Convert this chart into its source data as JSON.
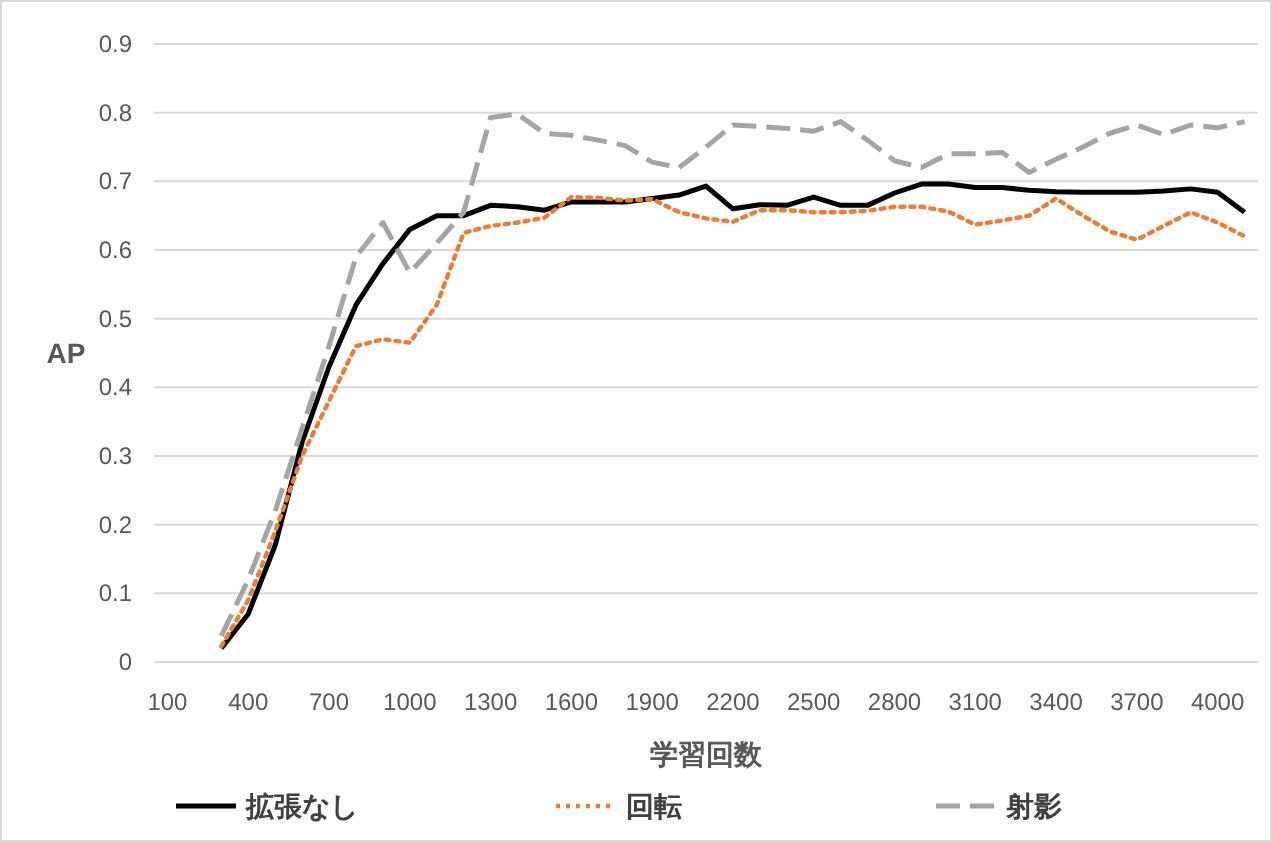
{
  "chart_data": {
    "type": "line",
    "xlabel": "学習回数",
    "ylabel": "AP",
    "categories": [
      "100",
      null,
      null,
      "400",
      null,
      null,
      "700",
      null,
      null,
      "1000",
      null,
      null,
      "1300",
      null,
      null,
      "1600",
      null,
      null,
      "1900",
      null,
      null,
      "2200",
      null,
      null,
      "2500",
      null,
      null,
      "2800",
      null,
      null,
      "3100",
      null,
      null,
      "3400",
      null,
      null,
      "3700",
      null,
      null,
      "4000",
      null
    ],
    "ylim": [
      0,
      0.9
    ],
    "yticks": [
      0,
      0.1,
      0.2,
      0.3,
      0.4,
      0.5,
      0.6,
      0.7,
      0.8,
      0.9
    ],
    "grid": "y",
    "legend": "bottom",
    "series": [
      {
        "name": "拡張なし",
        "color": "#000000",
        "line_style": "solid",
        "values": [
          null,
          null,
          0.02,
          0.07,
          0.17,
          0.32,
          0.43,
          0.52,
          0.58,
          0.63,
          0.65,
          0.65,
          0.665,
          0.663,
          0.658,
          0.67,
          0.67,
          0.67,
          0.675,
          0.68,
          0.693,
          0.66,
          0.666,
          0.665,
          0.677,
          0.665,
          0.665,
          0.683,
          0.696,
          0.696,
          0.691,
          0.691,
          0.687,
          0.685,
          0.684,
          0.684,
          0.684,
          0.686,
          0.689,
          0.684,
          0.655
        ]
      },
      {
        "name": "回転",
        "color": "#ed7d31",
        "line_style": "dotted",
        "values": [
          null,
          null,
          0.023,
          0.09,
          0.19,
          0.3,
          0.38,
          0.46,
          0.47,
          0.465,
          0.52,
          0.625,
          0.635,
          0.64,
          0.647,
          0.677,
          0.676,
          0.672,
          0.674,
          0.655,
          0.646,
          0.641,
          0.658,
          0.658,
          0.655,
          0.655,
          0.657,
          0.663,
          0.663,
          0.656,
          0.637,
          0.643,
          0.65,
          0.675,
          0.65,
          0.627,
          0.615,
          0.635,
          0.655,
          0.64,
          0.62
        ]
      },
      {
        "name": "射影",
        "color": "#a5a5a5",
        "line_style": "dashed",
        "values": [
          null,
          null,
          0.038,
          0.12,
          0.22,
          0.34,
          0.46,
          0.59,
          0.64,
          0.567,
          0.61,
          0.655,
          0.793,
          0.798,
          0.77,
          0.767,
          0.76,
          0.752,
          0.728,
          0.72,
          0.75,
          0.782,
          0.78,
          0.777,
          0.773,
          0.787,
          0.76,
          0.73,
          0.72,
          0.74,
          0.74,
          0.742,
          0.713,
          0.732,
          0.75,
          0.77,
          0.782,
          0.768,
          0.782,
          0.778,
          0.787
        ]
      }
    ]
  }
}
